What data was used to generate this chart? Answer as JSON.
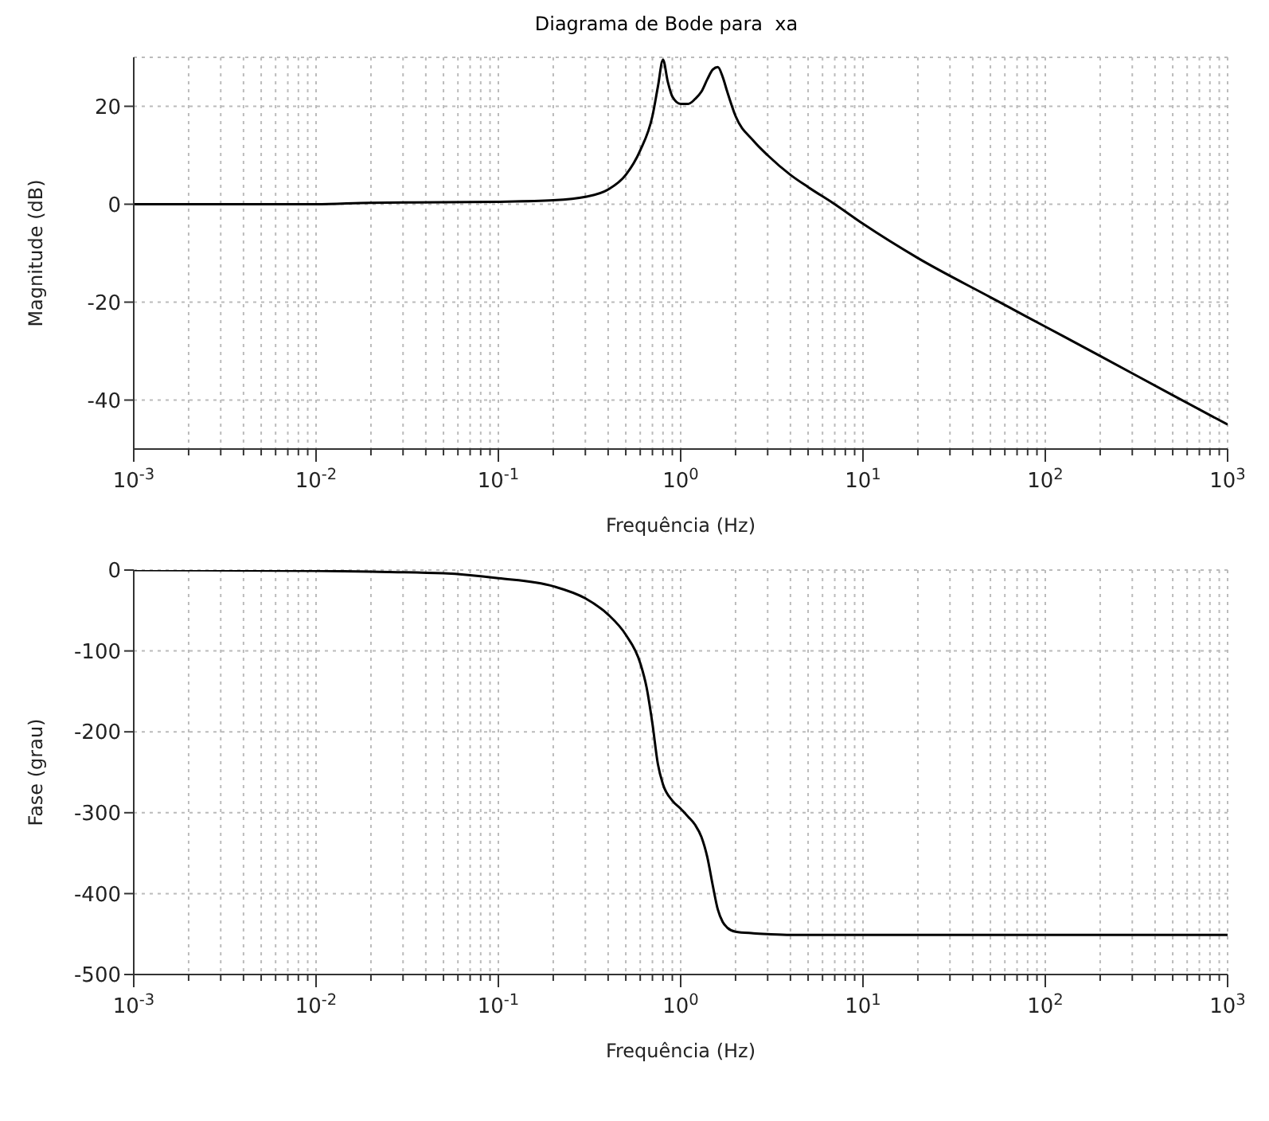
{
  "chart_data": [
    {
      "type": "line",
      "title": "Diagrama de Bode para  xa",
      "xlabel": "Frequência (Hz)",
      "ylabel": "Magnitude (dB)",
      "log": "x",
      "grid": true,
      "marker": "none",
      "line_style": "solid",
      "xlim": [
        0.001,
        1000
      ],
      "ylim": [
        -50,
        30
      ],
      "yticks": [
        -40,
        -20,
        0,
        20
      ],
      "xticks": [
        {
          "value": 0.001,
          "label": "10$^{-3}$"
        },
        {
          "value": 0.002,
          "label": null
        },
        {
          "value": 0.003,
          "label": null
        },
        {
          "value": 0.004,
          "label": null
        },
        {
          "value": 0.005,
          "label": null
        },
        {
          "value": 0.006,
          "label": null
        },
        {
          "value": 0.007,
          "label": null
        },
        {
          "value": 0.008,
          "label": null
        },
        {
          "value": 0.009,
          "label": null
        },
        {
          "value": 0.01,
          "label": "10$^{-2}$"
        },
        {
          "value": 0.02,
          "label": null
        },
        {
          "value": 0.03,
          "label": null
        },
        {
          "value": 0.04,
          "label": null
        },
        {
          "value": 0.05,
          "label": null
        },
        {
          "value": 0.06,
          "label": null
        },
        {
          "value": 0.07,
          "label": null
        },
        {
          "value": 0.08,
          "label": null
        },
        {
          "value": 0.09,
          "label": null
        },
        {
          "value": 0.1,
          "label": "10$^{-1}$"
        },
        {
          "value": 0.2,
          "label": null
        },
        {
          "value": 0.3,
          "label": null
        },
        {
          "value": 0.4,
          "label": null
        },
        {
          "value": 0.5,
          "label": null
        },
        {
          "value": 0.6,
          "label": null
        },
        {
          "value": 0.7,
          "label": null
        },
        {
          "value": 0.8,
          "label": null
        },
        {
          "value": 0.9,
          "label": null
        },
        {
          "value": 1,
          "label": "10$^{0}$"
        },
        {
          "value": 2,
          "label": null
        },
        {
          "value": 3,
          "label": null
        },
        {
          "value": 4,
          "label": null
        },
        {
          "value": 5,
          "label": null
        },
        {
          "value": 6,
          "label": null
        },
        {
          "value": 7,
          "label": null
        },
        {
          "value": 8,
          "label": null
        },
        {
          "value": 9,
          "label": null
        },
        {
          "value": 10,
          "label": "10$^{1}$"
        },
        {
          "value": 20,
          "label": null
        },
        {
          "value": 30,
          "label": null
        },
        {
          "value": 40,
          "label": null
        },
        {
          "value": 50,
          "label": null
        },
        {
          "value": 60,
          "label": null
        },
        {
          "value": 70,
          "label": null
        },
        {
          "value": 80,
          "label": null
        },
        {
          "value": 90,
          "label": null
        },
        {
          "value": 100,
          "label": "10$^{2}$"
        },
        {
          "value": 200,
          "label": null
        },
        {
          "value": 300,
          "label": null
        },
        {
          "value": 400,
          "label": null
        },
        {
          "value": 500,
          "label": null
        },
        {
          "value": 600,
          "label": null
        },
        {
          "value": 700,
          "label": null
        },
        {
          "value": 800,
          "label": null
        },
        {
          "value": 900,
          "label": null
        },
        {
          "value": 1000,
          "label": "10$^{3}$"
        }
      ],
      "series": [
        {
          "color": "#000000",
          "x": [
            0.001,
            0.01,
            0.02,
            0.05,
            0.1,
            0.2,
            0.3,
            0.4,
            0.5,
            0.6,
            0.7,
            0.75,
            0.8,
            0.85,
            0.9,
            1.0,
            1.1,
            1.2,
            1.3,
            1.4,
            1.5,
            1.6,
            1.7,
            1.8,
            2.0,
            2.5,
            3,
            4,
            5,
            7,
            10,
            20,
            50,
            100,
            200,
            500,
            1000
          ],
          "values": [
            0,
            0,
            0.3,
            0.4,
            0.5,
            0.8,
            1.5,
            3,
            6,
            11,
            18,
            24,
            29.5,
            25,
            22,
            20.5,
            20.5,
            21.5,
            23,
            25.5,
            27.5,
            28,
            26,
            23,
            18,
            13,
            10,
            6,
            3.5,
            0,
            -4,
            -11,
            -19,
            -25,
            -31,
            -39,
            -45
          ]
        }
      ]
    },
    {
      "type": "line",
      "xlabel": "Frequência (Hz)",
      "ylabel": "Fase (grau)",
      "log": "x",
      "grid": true,
      "marker": "none",
      "line_style": "solid",
      "xlim": [
        0.001,
        1000
      ],
      "ylim": [
        -500,
        0
      ],
      "yticks": [
        -500,
        -400,
        -300,
        -200,
        -100,
        0
      ],
      "xticks": [
        {
          "value": 0.001,
          "label": "10$^{-3}$"
        },
        {
          "value": 0.002,
          "label": null
        },
        {
          "value": 0.003,
          "label": null
        },
        {
          "value": 0.004,
          "label": null
        },
        {
          "value": 0.005,
          "label": null
        },
        {
          "value": 0.006,
          "label": null
        },
        {
          "value": 0.007,
          "label": null
        },
        {
          "value": 0.008,
          "label": null
        },
        {
          "value": 0.009,
          "label": null
        },
        {
          "value": 0.01,
          "label": "10$^{-2}$"
        },
        {
          "value": 0.02,
          "label": null
        },
        {
          "value": 0.03,
          "label": null
        },
        {
          "value": 0.04,
          "label": null
        },
        {
          "value": 0.05,
          "label": null
        },
        {
          "value": 0.06,
          "label": null
        },
        {
          "value": 0.07,
          "label": null
        },
        {
          "value": 0.08,
          "label": null
        },
        {
          "value": 0.09,
          "label": null
        },
        {
          "value": 0.1,
          "label": "10$^{-1}$"
        },
        {
          "value": 0.2,
          "label": null
        },
        {
          "value": 0.3,
          "label": null
        },
        {
          "value": 0.4,
          "label": null
        },
        {
          "value": 0.5,
          "label": null
        },
        {
          "value": 0.6,
          "label": null
        },
        {
          "value": 0.7,
          "label": null
        },
        {
          "value": 0.8,
          "label": null
        },
        {
          "value": 0.9,
          "label": null
        },
        {
          "value": 1,
          "label": "10$^{0}$"
        },
        {
          "value": 2,
          "label": null
        },
        {
          "value": 3,
          "label": null
        },
        {
          "value": 4,
          "label": null
        },
        {
          "value": 5,
          "label": null
        },
        {
          "value": 6,
          "label": null
        },
        {
          "value": 7,
          "label": null
        },
        {
          "value": 8,
          "label": null
        },
        {
          "value": 9,
          "label": null
        },
        {
          "value": 10,
          "label": "10$^{1}$"
        },
        {
          "value": 20,
          "label": null
        },
        {
          "value": 30,
          "label": null
        },
        {
          "value": 40,
          "label": null
        },
        {
          "value": 50,
          "label": null
        },
        {
          "value": 60,
          "label": null
        },
        {
          "value": 70,
          "label": null
        },
        {
          "value": 80,
          "label": null
        },
        {
          "value": 90,
          "label": null
        },
        {
          "value": 100,
          "label": "10$^{2}$"
        },
        {
          "value": 200,
          "label": null
        },
        {
          "value": 300,
          "label": null
        },
        {
          "value": 400,
          "label": null
        },
        {
          "value": 500,
          "label": null
        },
        {
          "value": 600,
          "label": null
        },
        {
          "value": 700,
          "label": null
        },
        {
          "value": 800,
          "label": null
        },
        {
          "value": 900,
          "label": null
        },
        {
          "value": 1000,
          "label": "10$^{3}$"
        }
      ],
      "series": [
        {
          "color": "#000000",
          "x": [
            0.001,
            0.01,
            0.02,
            0.05,
            0.1,
            0.2,
            0.3,
            0.4,
            0.5,
            0.6,
            0.65,
            0.7,
            0.75,
            0.8,
            0.9,
            1.0,
            1.1,
            1.2,
            1.3,
            1.4,
            1.5,
            1.6,
            1.7,
            1.8,
            2.0,
            2.5,
            3,
            4,
            10,
            100,
            1000
          ],
          "values": [
            0,
            -1,
            -2,
            -4,
            -10,
            -20,
            -35,
            -55,
            -80,
            -115,
            -145,
            -190,
            -240,
            -265,
            -285,
            -295,
            -305,
            -315,
            -330,
            -355,
            -390,
            -420,
            -435,
            -442,
            -447,
            -449,
            -450,
            -451,
            -451,
            -451,
            -451
          ]
        }
      ]
    }
  ]
}
